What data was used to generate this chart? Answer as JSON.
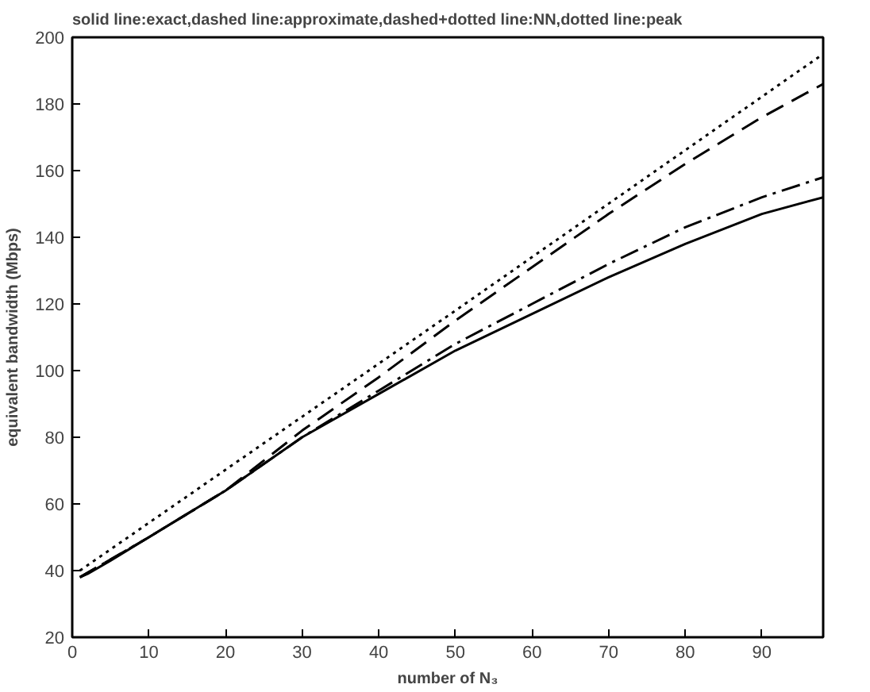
{
  "chart_data": {
    "type": "line",
    "title": "solid line:exact,dashed line:approximate,dashed+dotted line:NN,dotted line:peak",
    "xlabel": "number of N₃",
    "ylabel": "equivalent bandwidth (Mbps)",
    "xlim": [
      0,
      98
    ],
    "ylim": [
      20,
      200
    ],
    "xticks": [
      0,
      10,
      20,
      30,
      40,
      50,
      60,
      70,
      80,
      90
    ],
    "yticks": [
      20,
      40,
      60,
      80,
      100,
      120,
      140,
      160,
      180,
      200
    ],
    "grid": false,
    "marker": "none",
    "series": [
      {
        "color": "#000000",
        "line_style": "solid",
        "x": [
          1,
          2,
          5,
          10,
          20,
          30,
          40,
          50,
          60,
          70,
          80,
          90,
          98
        ],
        "values": [
          38,
          39,
          43,
          50,
          64,
          80,
          93,
          106,
          117,
          128,
          138,
          147,
          152
        ]
      },
      {
        "color": "#000000",
        "line_style": "dashed",
        "x": [
          1,
          10,
          20,
          25,
          30,
          40,
          50,
          60,
          70,
          80,
          90,
          98
        ],
        "values": [
          38,
          50,
          64,
          73,
          82,
          98,
          115,
          131,
          147,
          162,
          176,
          186
        ]
      },
      {
        "color": "#000000",
        "line_style": "dashdot",
        "x": [
          1,
          10,
          20,
          30,
          40,
          50,
          60,
          70,
          80,
          90,
          98
        ],
        "values": [
          38,
          50,
          64,
          80,
          94,
          108,
          120,
          132,
          143,
          152,
          158
        ]
      },
      {
        "color": "#000000",
        "line_style": "dotted",
        "x": [
          1,
          50,
          98
        ],
        "values": [
          40,
          118,
          195
        ]
      }
    ]
  }
}
